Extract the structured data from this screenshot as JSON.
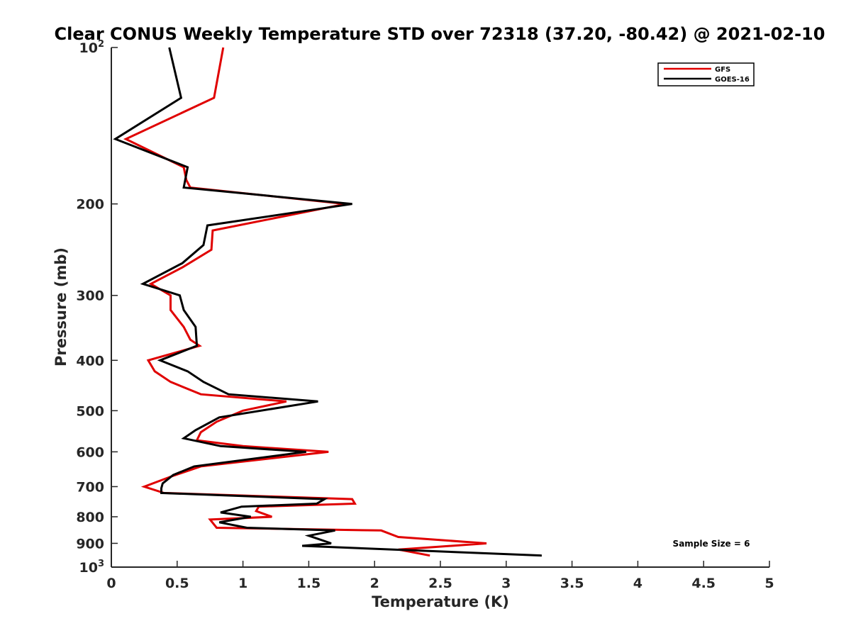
{
  "chart_data": {
    "type": "line",
    "title": "Clear CONUS Weekly Temperature STD over 72318 (37.20, -80.42) @ 2021-02-10",
    "xlabel": "Temperature (K)",
    "ylabel": "Pressure (mb)",
    "xlim": [
      0,
      5
    ],
    "ylim": [
      100,
      1000
    ],
    "y_scale": "log",
    "y_reversed": true,
    "grid": false,
    "legend_position": "top-right",
    "x_ticks": [
      {
        "value": 0,
        "label": "0"
      },
      {
        "value": 0.5,
        "label": "0.5"
      },
      {
        "value": 1,
        "label": "1"
      },
      {
        "value": 1.5,
        "label": "1.5"
      },
      {
        "value": 2,
        "label": "2"
      },
      {
        "value": 2.5,
        "label": "2.5"
      },
      {
        "value": 3,
        "label": "3"
      },
      {
        "value": 3.5,
        "label": "3.5"
      },
      {
        "value": 4,
        "label": "4"
      },
      {
        "value": 4.5,
        "label": "4.5"
      },
      {
        "value": 5,
        "label": "5"
      }
    ],
    "y_ticks": [
      {
        "value": 100,
        "base": "10",
        "exp": "2"
      },
      {
        "value": 200,
        "label": "200"
      },
      {
        "value": 300,
        "label": "300"
      },
      {
        "value": 400,
        "label": "400"
      },
      {
        "value": 500,
        "label": "500"
      },
      {
        "value": 600,
        "label": "600"
      },
      {
        "value": 700,
        "label": "700"
      },
      {
        "value": 800,
        "label": "800"
      },
      {
        "value": 900,
        "label": "900"
      },
      {
        "value": 1000,
        "base": "10",
        "exp": "3"
      }
    ],
    "annotation": "Sample Size = 6",
    "series": [
      {
        "name": "GFS",
        "color": "#e00000",
        "points": [
          {
            "x": 0.85,
            "p": 100
          },
          {
            "x": 0.78,
            "p": 125
          },
          {
            "x": 0.11,
            "p": 150
          },
          {
            "x": 0.55,
            "p": 170
          },
          {
            "x": 0.57,
            "p": 180
          },
          {
            "x": 0.6,
            "p": 186
          },
          {
            "x": 1.78,
            "p": 200
          },
          {
            "x": 0.77,
            "p": 225
          },
          {
            "x": 0.76,
            "p": 245
          },
          {
            "x": 0.54,
            "p": 265
          },
          {
            "x": 0.3,
            "p": 285
          },
          {
            "x": 0.45,
            "p": 300
          },
          {
            "x": 0.45,
            "p": 320
          },
          {
            "x": 0.55,
            "p": 345
          },
          {
            "x": 0.6,
            "p": 365
          },
          {
            "x": 0.67,
            "p": 375
          },
          {
            "x": 0.28,
            "p": 400
          },
          {
            "x": 0.33,
            "p": 420
          },
          {
            "x": 0.45,
            "p": 440
          },
          {
            "x": 0.68,
            "p": 465
          },
          {
            "x": 1.33,
            "p": 480
          },
          {
            "x": 1.0,
            "p": 500
          },
          {
            "x": 0.8,
            "p": 525
          },
          {
            "x": 0.68,
            "p": 550
          },
          {
            "x": 0.65,
            "p": 570
          },
          {
            "x": 1.0,
            "p": 585
          },
          {
            "x": 1.65,
            "p": 600
          },
          {
            "x": 0.68,
            "p": 640
          },
          {
            "x": 0.45,
            "p": 670
          },
          {
            "x": 0.25,
            "p": 700
          },
          {
            "x": 0.4,
            "p": 720
          },
          {
            "x": 1.83,
            "p": 740
          },
          {
            "x": 1.85,
            "p": 755
          },
          {
            "x": 1.12,
            "p": 765
          },
          {
            "x": 1.1,
            "p": 780
          },
          {
            "x": 1.22,
            "p": 800
          },
          {
            "x": 0.75,
            "p": 810
          },
          {
            "x": 0.8,
            "p": 840
          },
          {
            "x": 2.05,
            "p": 850
          },
          {
            "x": 2.18,
            "p": 875
          },
          {
            "x": 2.85,
            "p": 900
          },
          {
            "x": 2.18,
            "p": 925
          },
          {
            "x": 2.42,
            "p": 950
          }
        ]
      },
      {
        "name": "GOES-16",
        "color": "#000000",
        "points": [
          {
            "x": 0.44,
            "p": 100
          },
          {
            "x": 0.53,
            "p": 125
          },
          {
            "x": 0.03,
            "p": 150
          },
          {
            "x": 0.58,
            "p": 170
          },
          {
            "x": 0.55,
            "p": 186
          },
          {
            "x": 1.83,
            "p": 200
          },
          {
            "x": 0.73,
            "p": 220
          },
          {
            "x": 0.7,
            "p": 240
          },
          {
            "x": 0.54,
            "p": 260
          },
          {
            "x": 0.24,
            "p": 285
          },
          {
            "x": 0.52,
            "p": 300
          },
          {
            "x": 0.55,
            "p": 320
          },
          {
            "x": 0.64,
            "p": 345
          },
          {
            "x": 0.65,
            "p": 375
          },
          {
            "x": 0.37,
            "p": 400
          },
          {
            "x": 0.58,
            "p": 420
          },
          {
            "x": 0.7,
            "p": 440
          },
          {
            "x": 0.89,
            "p": 465
          },
          {
            "x": 1.57,
            "p": 480
          },
          {
            "x": 0.82,
            "p": 515
          },
          {
            "x": 0.64,
            "p": 545
          },
          {
            "x": 0.55,
            "p": 565
          },
          {
            "x": 0.83,
            "p": 585
          },
          {
            "x": 1.48,
            "p": 600
          },
          {
            "x": 0.63,
            "p": 640
          },
          {
            "x": 0.47,
            "p": 665
          },
          {
            "x": 0.39,
            "p": 690
          },
          {
            "x": 0.38,
            "p": 705
          },
          {
            "x": 0.38,
            "p": 720
          },
          {
            "x": 1.62,
            "p": 740
          },
          {
            "x": 1.56,
            "p": 755
          },
          {
            "x": 0.99,
            "p": 765
          },
          {
            "x": 0.83,
            "p": 785
          },
          {
            "x": 1.06,
            "p": 800
          },
          {
            "x": 0.82,
            "p": 820
          },
          {
            "x": 1.03,
            "p": 840
          },
          {
            "x": 1.7,
            "p": 850
          },
          {
            "x": 1.5,
            "p": 870
          },
          {
            "x": 1.67,
            "p": 900
          },
          {
            "x": 1.45,
            "p": 910
          },
          {
            "x": 3.27,
            "p": 950
          }
        ]
      }
    ]
  }
}
